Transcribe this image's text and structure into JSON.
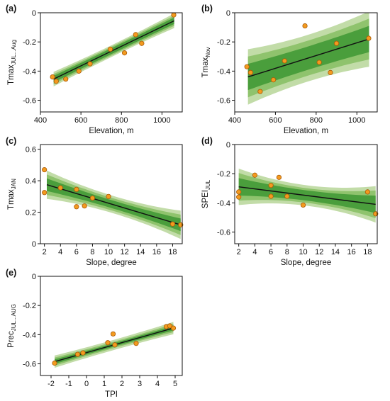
{
  "colors": {
    "band_outer": "#c2dca8",
    "band_middle": "#8fc36d",
    "band_inner": "#4a9e3c",
    "fit_line": "#111111",
    "point_fill": "#f39a1f",
    "point_stroke": "#a85a08",
    "axis": "#111111"
  },
  "chart_data": [
    {
      "id": "a",
      "panel_label": "(a)",
      "type": "scatter",
      "xlabel": "Elevation, m",
      "ylabel": {
        "main": "Tmax",
        "sub": "JUL...Aug"
      },
      "xlim": [
        400,
        1100
      ],
      "ylim": [
        -0.68,
        0
      ],
      "xticks": [
        400,
        600,
        800,
        1000
      ],
      "yticks": [
        0,
        -0.2,
        -0.4,
        -0.6
      ],
      "ytick_labels": [
        "0",
        "-0.2",
        "-0.4",
        "-0.6"
      ],
      "points": [
        [
          460,
          -0.44
        ],
        [
          478,
          -0.47
        ],
        [
          525,
          -0.455
        ],
        [
          590,
          -0.4
        ],
        [
          645,
          -0.35
        ],
        [
          745,
          -0.25
        ],
        [
          815,
          -0.275
        ],
        [
          870,
          -0.15
        ],
        [
          900,
          -0.21
        ],
        [
          1058,
          -0.015
        ]
      ],
      "fit": {
        "x": [
          465,
          1060
        ],
        "y": [
          -0.455,
          -0.055
        ]
      },
      "bands": {
        "inner": [
          0.02,
          0.022
        ],
        "middle": [
          0.03,
          0.035
        ],
        "outer": [
          0.04,
          0.05
        ]
      }
    },
    {
      "id": "b",
      "panel_label": "(b)",
      "type": "scatter",
      "xlabel": "Elevation, m",
      "ylabel": {
        "main": "Tmax",
        "sub": "Nov"
      },
      "xlim": [
        400,
        1100
      ],
      "ylim": [
        -0.68,
        0
      ],
      "xticks": [
        400,
        600,
        800,
        1000
      ],
      "yticks": [
        0,
        -0.2,
        -0.4,
        -0.6
      ],
      "ytick_labels": [
        "0",
        "-0.2",
        "-0.4",
        "-0.6"
      ],
      "points": [
        [
          460,
          -0.37
        ],
        [
          478,
          -0.41
        ],
        [
          525,
          -0.54
        ],
        [
          590,
          -0.46
        ],
        [
          645,
          -0.33
        ],
        [
          745,
          -0.09
        ],
        [
          815,
          -0.34
        ],
        [
          870,
          -0.41
        ],
        [
          900,
          -0.21
        ],
        [
          1058,
          -0.175
        ]
      ],
      "fit": {
        "x": [
          465,
          1060
        ],
        "y": [
          -0.44,
          -0.18
        ]
      },
      "bands": {
        "inner": [
          0.08,
          0.09
        ],
        "middle": [
          0.12,
          0.14
        ],
        "outer": [
          0.16,
          0.19
        ]
      }
    },
    {
      "id": "c",
      "panel_label": "(c)",
      "type": "scatter",
      "xlabel": "Slope, degree",
      "ylabel": {
        "main": "Tmax",
        "sub": "JAN"
      },
      "xlim": [
        1.5,
        19.2
      ],
      "ylim": [
        0,
        0.63
      ],
      "xticks": [
        2,
        4,
        6,
        8,
        10,
        12,
        14,
        16,
        18
      ],
      "yticks": [
        0,
        0.2,
        0.4,
        0.6
      ],
      "ytick_labels": [
        "0",
        "0.2",
        "0.4",
        "0.6"
      ],
      "points": [
        [
          2,
          0.47
        ],
        [
          2,
          0.325
        ],
        [
          4,
          0.355
        ],
        [
          6,
          0.345
        ],
        [
          6,
          0.235
        ],
        [
          7,
          0.24
        ],
        [
          8,
          0.29
        ],
        [
          10,
          0.3
        ],
        [
          18,
          0.125
        ],
        [
          19,
          0.12
        ]
      ],
      "fit": {
        "x": [
          2.3,
          19
        ],
        "y": [
          0.375,
          0.12
        ]
      },
      "bands": {
        "inner": [
          0.025,
          0.04
        ],
        "middle": [
          0.04,
          0.065
        ],
        "outer": [
          0.055,
          0.09
        ]
      }
    },
    {
      "id": "d",
      "panel_label": "(d)",
      "type": "scatter",
      "xlabel": "Slope, degree",
      "ylabel": {
        "main": "SPEI",
        "sub": "JUL"
      },
      "xlim": [
        1.5,
        19.2
      ],
      "ylim": [
        -0.68,
        0
      ],
      "xticks": [
        2,
        4,
        6,
        8,
        10,
        12,
        14,
        16,
        18
      ],
      "yticks": [
        0,
        -0.2,
        -0.4,
        -0.6
      ],
      "ytick_labels": [
        "0",
        "-0.2",
        "-0.4",
        "-0.6"
      ],
      "points": [
        [
          2,
          -0.325
        ],
        [
          2,
          -0.36
        ],
        [
          4,
          -0.21
        ],
        [
          6,
          -0.28
        ],
        [
          6,
          -0.355
        ],
        [
          7,
          -0.225
        ],
        [
          8,
          -0.355
        ],
        [
          10,
          -0.415
        ],
        [
          18,
          -0.325
        ],
        [
          19,
          -0.475
        ]
      ],
      "fit": {
        "x": [
          2,
          19
        ],
        "y": [
          -0.29,
          -0.41
        ]
      },
      "bands": {
        "inner": [
          0.035,
          0.06
        ],
        "middle": [
          0.05,
          0.095
        ],
        "outer": [
          0.07,
          0.125
        ]
      }
    },
    {
      "id": "e",
      "panel_label": "(e)",
      "type": "scatter",
      "xlabel": "TPI",
      "ylabel": {
        "main": "Prec",
        "sub": "JUL...AUG"
      },
      "xlim": [
        -2.6,
        5.4
      ],
      "ylim": [
        -0.68,
        0
      ],
      "xticks": [
        -2,
        -1,
        0,
        1,
        2,
        3,
        4,
        5
      ],
      "yticks": [
        0,
        -0.2,
        -0.4,
        -0.6
      ],
      "ytick_labels": [
        "0",
        "-0.2",
        "-0.4",
        "-0.6"
      ],
      "points": [
        [
          -1.8,
          -0.595
        ],
        [
          -0.5,
          -0.535
        ],
        [
          -0.2,
          -0.525
        ],
        [
          1.2,
          -0.455
        ],
        [
          1.5,
          -0.395
        ],
        [
          1.6,
          -0.47
        ],
        [
          2.8,
          -0.46
        ],
        [
          4.5,
          -0.345
        ],
        [
          4.7,
          -0.34
        ],
        [
          4.9,
          -0.355
        ]
      ],
      "fit": {
        "x": [
          -1.8,
          4.9
        ],
        "y": [
          -0.585,
          -0.355
        ]
      },
      "bands": {
        "inner": [
          0.012,
          0.016
        ],
        "middle": [
          0.022,
          0.028
        ],
        "outer": [
          0.035,
          0.042
        ]
      }
    }
  ]
}
